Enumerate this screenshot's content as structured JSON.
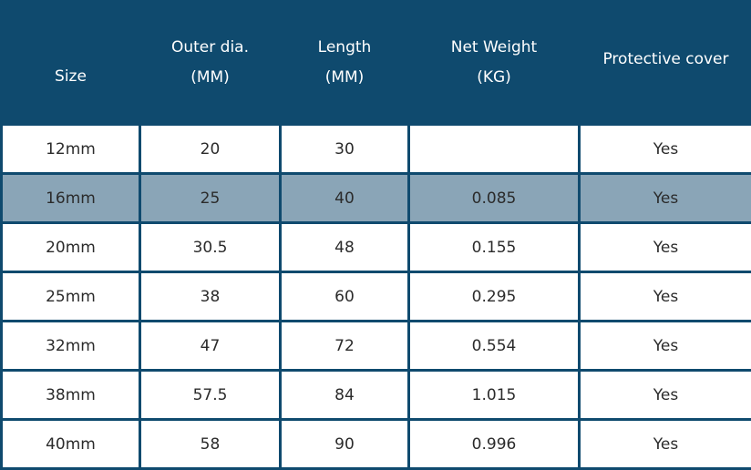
{
  "table": {
    "header": [
      [
        "Size"
      ],
      [
        "Outer dia.",
        "(MM)"
      ],
      [
        "Length",
        "(MM)"
      ],
      [
        "Net Weight",
        "(KG)"
      ],
      [
        "Protective cover"
      ]
    ],
    "rows": [
      [
        "12mm",
        "20",
        "30",
        null,
        "Yes"
      ],
      [
        "16mm",
        "25",
        "40",
        "0.085",
        "Yes"
      ],
      [
        "20mm",
        "30.5",
        "48",
        "0.155",
        "Yes"
      ],
      [
        "25mm",
        "38",
        "60",
        "0.295",
        "Yes"
      ],
      [
        "32mm",
        "47",
        "72",
        "0.554",
        "Yes"
      ],
      [
        "38mm",
        "57.5",
        "84",
        "1.015",
        "Yes"
      ],
      [
        "40mm",
        "58",
        "90",
        "0.996",
        "Yes"
      ]
    ],
    "highlighted_row": 1
  }
}
